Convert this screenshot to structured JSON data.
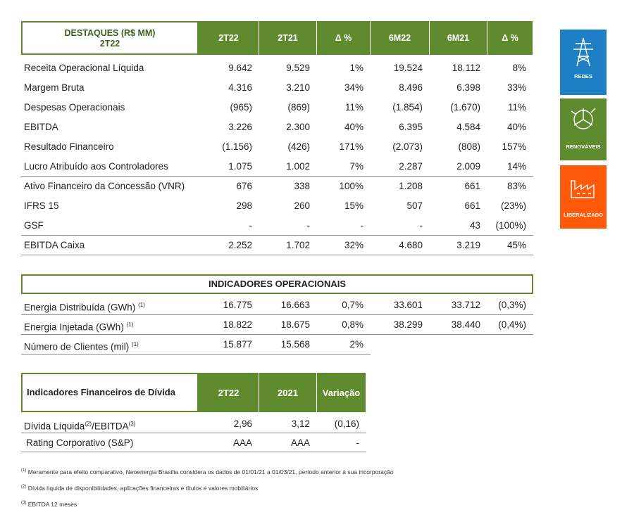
{
  "highlights": {
    "title": "DESTAQUES (R$ MM)",
    "subtitle": "2T22",
    "columns": [
      "2T22",
      "2T21",
      "Δ %",
      "6M22",
      "6M21",
      "Δ %"
    ],
    "rows": [
      {
        "label": "Receita Operacional Líquida",
        "values": [
          "9.642",
          "9.529",
          "1%",
          "19.524",
          "18.112",
          "8%"
        ]
      },
      {
        "label": "Margem Bruta",
        "values": [
          "4.316",
          "3.210",
          "34%",
          "8.496",
          "6.398",
          "33%"
        ]
      },
      {
        "label": "Despesas Operacionais",
        "values": [
          "(965)",
          "(869)",
          "11%",
          "(1.854)",
          "(1.670)",
          "11%"
        ]
      },
      {
        "label": "EBITDA",
        "values": [
          "3.226",
          "2.300",
          "40%",
          "6.395",
          "4.584",
          "40%"
        ]
      },
      {
        "label": "Resultado Financeiro",
        "values": [
          "(1.156)",
          "(426)",
          "171%",
          "(2.073)",
          "(808)",
          "157%"
        ]
      },
      {
        "label": "Lucro Atribuído aos Controladores",
        "values": [
          "1.075",
          "1.002",
          "7%",
          "2.287",
          "2.009",
          "14%"
        ]
      },
      {
        "label": "Ativo Financeiro da Concessão (VNR)",
        "values": [
          "676",
          "338",
          "100%",
          "1.208",
          "661",
          "83%"
        ]
      },
      {
        "label": "IFRS 15",
        "values": [
          "298",
          "260",
          "15%",
          "507",
          "661",
          "(23%)"
        ]
      },
      {
        "label": "GSF",
        "values": [
          "-",
          "-",
          "-",
          "-",
          "43",
          "(100%)"
        ]
      },
      {
        "label": "EBITDA Caixa",
        "values": [
          "2.252",
          "1.702",
          "32%",
          "4.680",
          "3.219",
          "45%"
        ]
      }
    ]
  },
  "segments": [
    "REDES",
    "RENOVÁVEIS",
    "LIBERALIZADO"
  ],
  "operational": {
    "title": "INDICADORES OPERACIONAIS",
    "rows": [
      {
        "label": "Energia Distribuída (GWh)",
        "note": "(1)",
        "values": [
          "16.775",
          "16.663",
          "0,7%",
          "33.601",
          "33.712",
          "(0,3%)"
        ]
      },
      {
        "label": "Energia Injetada (GWh)",
        "note": "(1)",
        "values": [
          "18.822",
          "18.675",
          "0,8%",
          "38.299",
          "38.440",
          "(0,4%)"
        ]
      },
      {
        "label": "Número de Clientes (mil)",
        "note": "(1)",
        "values": [
          "15.877",
          "15.568",
          "2%"
        ]
      }
    ]
  },
  "debt": {
    "title": "Indicadores Financeiros de Dívida",
    "columns": [
      "2T22",
      "2021",
      "Variação"
    ],
    "rows": [
      {
        "label": "Dívida Líquida",
        "note": "(2)",
        "suffix": "/EBITDA",
        "suffix_note": "(3)",
        "values": [
          "2,96",
          "3,12",
          "(0,16)"
        ]
      },
      {
        "label": "Rating Corporativo (S&P)",
        "values": [
          "AAA",
          "AAA",
          "-"
        ]
      }
    ]
  },
  "footnotes": [
    {
      "mark": "(1)",
      "text": "Meramente para efeito comparativo, Neoenergia Brasília considera os dados de 01/01/21 a 01/03/21, período anterior à sua incorporação"
    },
    {
      "mark": "(2)",
      "text": "Dívida líquida de disponibilidades, aplicações financeiras e títulos e valores mobiliários"
    },
    {
      "mark": "(3)",
      "text": "EBITDA 12 meses"
    }
  ]
}
